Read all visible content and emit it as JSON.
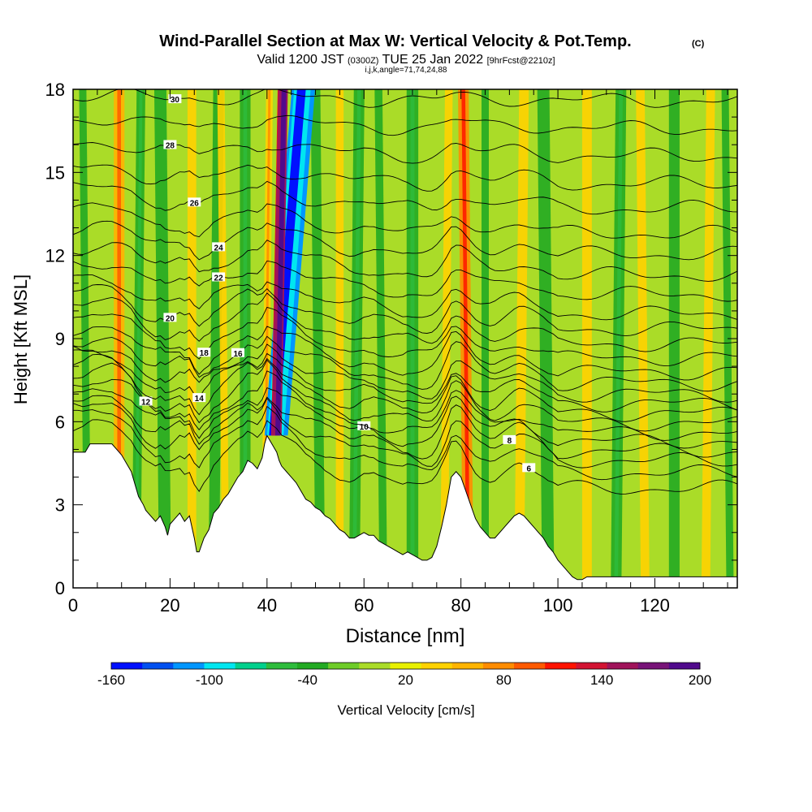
{
  "chart_data": {
    "type": "heatmap",
    "title": "Wind-Parallel Section at Max W: Vertical Velocity & Pot.Temp.",
    "title_mark": "(C)",
    "subtitle_prefix": "Valid 1200 JST",
    "subtitle_utc": "(0300Z)",
    "subtitle_date": "TUE 25 Jan 2022",
    "subtitle_fcst": "[9hrFcst@2210z]",
    "subtitle2": "i,j,k,angle=71,74,24,88",
    "xlabel": "Distance [nm]",
    "ylabel": "Height [Kft MSL]",
    "xlim": [
      0,
      137
    ],
    "ylim": [
      0,
      18
    ],
    "xticks": [
      "0",
      "20",
      "40",
      "60",
      "80",
      "100",
      "120"
    ],
    "yticks": [
      "0",
      "3",
      "6",
      "9",
      "12",
      "15",
      "18"
    ],
    "colorbar": {
      "label": "Vertical Velocity [cm/s]",
      "ticks": [
        "-160",
        "-100",
        "-40",
        "20",
        "80",
        "140",
        "200"
      ],
      "colors": [
        "#0010ff",
        "#0050f0",
        "#0096ff",
        "#00e6f0",
        "#00d08c",
        "#2ebc3c",
        "#22aa22",
        "#6ecc28",
        "#aadc28",
        "#e8f000",
        "#ffd200",
        "#ffb400",
        "#ff8c00",
        "#ff5a00",
        "#ff1400",
        "#d21432",
        "#a0145a",
        "#781478",
        "#500a8c"
      ]
    },
    "velocity_columns": [
      {
        "x": 3,
        "w": 1.5,
        "v": -30
      },
      {
        "x": 9.5,
        "w": 2.2,
        "v": 60
      },
      {
        "x": 13,
        "w": 1.8,
        "v": -40
      },
      {
        "x": 19,
        "w": 2.5,
        "v": -35
      },
      {
        "x": 24.5,
        "w": 1.8,
        "v": 30
      },
      {
        "x": 29,
        "w": 2.2,
        "v": -35
      },
      {
        "x": 31.5,
        "w": 1.5,
        "v": 30
      },
      {
        "x": 35.5,
        "w": 2.2,
        "v": -40
      },
      {
        "x": 39.5,
        "w": 1.4,
        "v": 40
      },
      {
        "x": 51,
        "w": 2,
        "v": -35
      },
      {
        "x": 55,
        "w": 1.6,
        "v": 30
      },
      {
        "x": 58,
        "w": 2.2,
        "v": -40
      },
      {
        "x": 64,
        "w": 1.6,
        "v": -30
      },
      {
        "x": 70,
        "w": 2.4,
        "v": -40
      },
      {
        "x": 76.5,
        "w": 1.6,
        "v": 30
      },
      {
        "x": 81.5,
        "w": 2.2,
        "v": 80
      },
      {
        "x": 85,
        "w": 1.5,
        "v": -35
      },
      {
        "x": 92,
        "w": 2,
        "v": 30
      },
      {
        "x": 98,
        "w": 2.5,
        "v": -35
      },
      {
        "x": 106,
        "w": 2,
        "v": 30
      },
      {
        "x": 112,
        "w": 2.2,
        "v": -40
      },
      {
        "x": 118,
        "w": 1.8,
        "v": 30
      },
      {
        "x": 124,
        "w": 2.2,
        "v": -35
      },
      {
        "x": 130.5,
        "w": 1.8,
        "v": 30
      },
      {
        "x": 135.5,
        "w": 1.5,
        "v": -30
      }
    ],
    "updraft_core": {
      "x_bottom": 42.5,
      "x_top": 44.5,
      "v": 200
    },
    "downdraft_core": {
      "x_bottom": 41.3,
      "x_top": 47.5,
      "v": -160
    },
    "terrain": {
      "x": [
        0,
        2.5,
        3.5,
        8,
        9,
        10,
        11,
        12,
        12.5,
        13,
        13.5,
        14.5,
        15,
        16,
        17,
        18,
        19,
        19.5,
        20,
        21,
        22,
        23,
        24,
        25,
        25.5,
        26,
        27,
        28,
        29,
        30,
        31,
        32,
        33,
        34,
        35,
        36,
        37,
        38,
        39,
        39.5,
        40,
        41,
        42,
        42.5,
        43,
        43.5,
        44,
        44.5,
        45,
        46,
        47,
        48,
        49,
        50,
        51,
        52,
        53,
        54,
        55,
        56,
        57,
        58,
        59,
        60,
        61,
        62,
        63,
        64,
        65,
        66,
        67,
        68,
        69,
        70,
        71,
        72,
        73,
        74,
        75,
        76,
        77,
        78,
        79,
        80,
        81,
        82,
        83,
        84,
        85,
        86,
        87,
        88,
        89,
        90,
        91,
        92,
        93,
        94,
        95,
        96,
        97,
        98,
        99,
        100,
        101,
        102,
        103,
        104,
        105,
        106,
        110,
        120,
        130,
        137
      ],
      "h": [
        4.9,
        4.9,
        5.2,
        5.2,
        5,
        4.8,
        4.5,
        4.2,
        3.9,
        3.6,
        3.3,
        3,
        2.8,
        2.6,
        2.4,
        2.6,
        2.2,
        1.9,
        2.3,
        2.5,
        2.7,
        2.4,
        2.6,
        1.8,
        1.3,
        1.3,
        1.8,
        2.1,
        2.7,
        2.9,
        3.2,
        3.4,
        3.7,
        4,
        4.2,
        4.6,
        4.5,
        4.3,
        4.7,
        5.2,
        5.5,
        5.2,
        4.9,
        4.6,
        4.4,
        4.3,
        4.2,
        4.1,
        4,
        3.8,
        3.5,
        3.2,
        3.1,
        2.9,
        2.8,
        2.6,
        2.5,
        2.3,
        2.1,
        2,
        1.8,
        1.8,
        1.9,
        2,
        1.9,
        1.9,
        1.7,
        1.6,
        1.5,
        1.4,
        1.3,
        1.2,
        1.3,
        1.2,
        1.1,
        1,
        1,
        1.1,
        1.5,
        2.2,
        3,
        4,
        4.2,
        4,
        3.5,
        3,
        2.5,
        2.2,
        2,
        1.8,
        1.8,
        2,
        2.2,
        2.4,
        2.6,
        2.7,
        2.6,
        2.4,
        2.2,
        2,
        1.8,
        1.5,
        1.3,
        1,
        0.8,
        0.6,
        0.4,
        0.3,
        0.3,
        0.4,
        0.4,
        0.4,
        0.4,
        0.4
      ]
    },
    "theta_levels": [
      {
        "z": 3.6,
        "label": "6",
        "lx": 94
      },
      {
        "z": 4.15
      },
      {
        "z": 4.6,
        "label": "8",
        "lx": 90
      },
      {
        "z": 4.95
      },
      {
        "z": 5.3,
        "label": "10",
        "lx": 60
      },
      {
        "z": 5.6
      },
      {
        "z": 5.95,
        "label": "12",
        "lx": 15
      },
      {
        "z": 6.3
      },
      {
        "z": 6.65,
        "label": "14",
        "lx": 26
      },
      {
        "z": 7
      },
      {
        "z": 7.4,
        "label": "16",
        "lx": 34
      },
      {
        "z": 7.8
      },
      {
        "z": 8.3,
        "label": "18",
        "lx": 27
      },
      {
        "z": 8.8
      },
      {
        "z": 9.35,
        "label": "20",
        "lx": 20
      },
      {
        "z": 9.9
      },
      {
        "z": 10.6,
        "label": "22",
        "lx": 30
      },
      {
        "z": 11.3
      },
      {
        "z": 12.05,
        "label": "24",
        "lx": 30
      },
      {
        "z": 12.8
      },
      {
        "z": 13.7,
        "label": "26",
        "lx": 25
      },
      {
        "z": 14.6
      },
      {
        "z": 15.6,
        "label": "28",
        "lx": 20
      },
      {
        "z": 16.6
      },
      {
        "z": 17.6,
        "label": "30",
        "lx": 21
      }
    ]
  }
}
